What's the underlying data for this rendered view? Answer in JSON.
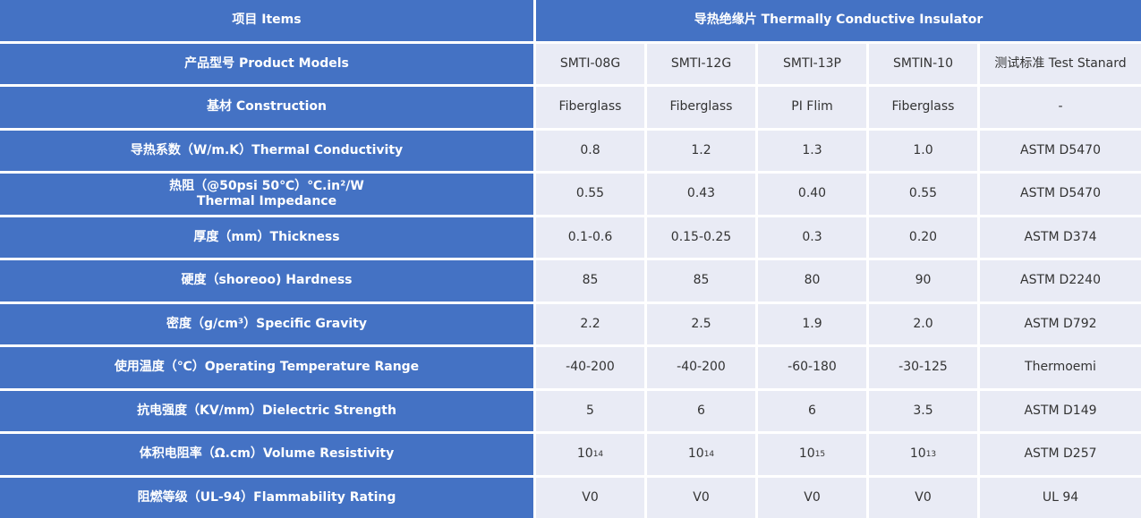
{
  "colors": {
    "header_bg": "#4472C4",
    "cell_bg": "#E9EBF5",
    "text": "#333333"
  },
  "header": {
    "item": "项目  Items",
    "group": "导热绝缘片 Thermally Conductive Insulator"
  },
  "rows": [
    {
      "label": "产品型号 Product Models",
      "values": [
        "SMTI-08G",
        "SMTI-12G",
        "SMTI-13P",
        "SMTIN-10",
        "测试标准 Test Stanard"
      ]
    },
    {
      "label": "基材 Construction",
      "values": [
        "Fiberglass",
        "Fiberglass",
        "PI Flim",
        "Fiberglass",
        "-"
      ]
    },
    {
      "label": "导热系数（W/m.K）Thermal Conductivity",
      "values": [
        "0.8",
        "1.2",
        "1.3",
        "1.0",
        "ASTM D5470"
      ]
    },
    {
      "label": "热阻（@50psi 50℃）℃.in²/W",
      "label2": "Thermal Impedance",
      "values": [
        "0.55",
        "0.43",
        "0.40",
        "0.55",
        "ASTM D5470"
      ]
    },
    {
      "label": "厚度（mm）Thickness",
      "values": [
        "0.1-0.6",
        "0.15-0.25",
        "0.3",
        "0.20",
        "ASTM D374"
      ]
    },
    {
      "label": "硬度（shoreoo) Hardness",
      "values": [
        "85",
        "85",
        "80",
        "90",
        "ASTM D2240"
      ]
    },
    {
      "label": "密度（g/cm³）Specific Gravity",
      "values": [
        "2.2",
        "2.5",
        "1.9",
        "2.0",
        "ASTM D792"
      ]
    },
    {
      "label": "使用温度（℃）Operating Temperature Range",
      "values": [
        "-40-200",
        "-40-200",
        "-60-180",
        "-30-125",
        "Thermoemi"
      ]
    },
    {
      "label": "抗电强度（KV/mm）Dielectric Strength",
      "values": [
        "5",
        "6",
        "6",
        "3.5",
        "ASTM D149"
      ]
    },
    {
      "label": "体积电阻率（Ω.cm）Volume Resistivity",
      "values": [
        {
          "base": "10",
          "exp": "14"
        },
        {
          "base": "10",
          "exp": "14"
        },
        {
          "base": "10",
          "exp": "15"
        },
        {
          "base": "10",
          "exp": "13"
        },
        "ASTM D257"
      ]
    },
    {
      "label": "阻燃等级（UL-94）Flammability Rating",
      "values": [
        "V0",
        "V0",
        "V0",
        "V0",
        "UL 94"
      ]
    }
  ]
}
